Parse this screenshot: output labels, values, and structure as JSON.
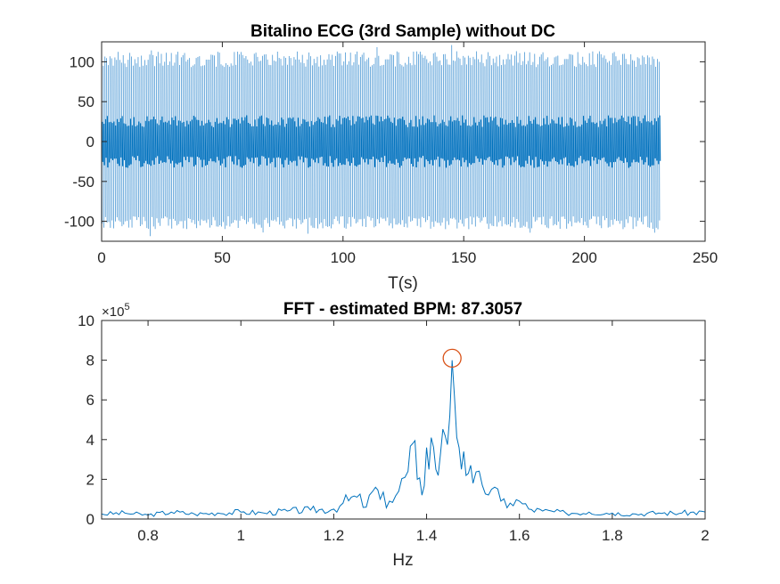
{
  "chart_data": [
    {
      "type": "line",
      "title": "Bitalino ECG (3rd Sample) without DC",
      "xlabel": "T(s)",
      "ylabel": "",
      "xlim": [
        0,
        250
      ],
      "ylim": [
        -125,
        125
      ],
      "xticks": [
        "0",
        "50",
        "100",
        "150",
        "200",
        "250"
      ],
      "yticks": [
        "-100",
        "-50",
        "0",
        "50",
        "100"
      ],
      "grid": false,
      "series": [
        {
          "color": "#0072BD",
          "signal": {
            "t_start": 0,
            "t_end": 231.5,
            "beat_rate_hz": 1.455,
            "r_peak_amplitude": 110,
            "s_trough_amplitude": -110,
            "baseline_band": [
              -30,
              30
            ],
            "max_observed": 125,
            "min_observed": -122
          }
        }
      ]
    },
    {
      "type": "line",
      "title": "FFT - estimated BPM: 87.3057",
      "xlabel": "Hz",
      "ylabel": "",
      "xlim": [
        0.7,
        2.0
      ],
      "ylim": [
        0,
        10
      ],
      "y_exponent": "×10",
      "y_exponent_power": "5",
      "xticks": [
        "0.8",
        "1",
        "1.2",
        "1.4",
        "1.6",
        "1.8",
        "2"
      ],
      "yticks": [
        "0",
        "2",
        "4",
        "6",
        "8",
        "10"
      ],
      "grid": false,
      "series": [
        {
          "color": "#0072BD",
          "points": [
            [
              0.7,
              0.25
            ],
            [
              0.75,
              0.3
            ],
            [
              0.8,
              0.2
            ],
            [
              0.85,
              0.35
            ],
            [
              0.9,
              0.25
            ],
            [
              0.95,
              0.3
            ],
            [
              1.0,
              0.35
            ],
            [
              1.05,
              0.3
            ],
            [
              1.1,
              0.4
            ],
            [
              1.15,
              0.45
            ],
            [
              1.2,
              0.5
            ],
            [
              1.22,
              0.8
            ],
            [
              1.25,
              1.1
            ],
            [
              1.27,
              0.6
            ],
            [
              1.29,
              1.6
            ],
            [
              1.3,
              1.0
            ],
            [
              1.32,
              0.9
            ],
            [
              1.34,
              1.4
            ],
            [
              1.36,
              2.4
            ],
            [
              1.37,
              3.8
            ],
            [
              1.38,
              2.0
            ],
            [
              1.39,
              1.2
            ],
            [
              1.4,
              3.6
            ],
            [
              1.41,
              4.1
            ],
            [
              1.42,
              2.5
            ],
            [
              1.43,
              3.3
            ],
            [
              1.44,
              4.2
            ],
            [
              1.45,
              5.2
            ],
            [
              1.455,
              8.0
            ],
            [
              1.46,
              6.2
            ],
            [
              1.47,
              3.6
            ],
            [
              1.48,
              3.4
            ],
            [
              1.49,
              2.3
            ],
            [
              1.5,
              1.8
            ],
            [
              1.52,
              1.7
            ],
            [
              1.54,
              1.5
            ],
            [
              1.56,
              0.9
            ],
            [
              1.58,
              0.8
            ],
            [
              1.6,
              0.9
            ],
            [
              1.62,
              0.5
            ],
            [
              1.65,
              0.4
            ],
            [
              1.7,
              0.3
            ],
            [
              1.75,
              0.35
            ],
            [
              1.8,
              0.3
            ],
            [
              1.85,
              0.25
            ],
            [
              1.9,
              0.3
            ],
            [
              1.95,
              0.3
            ],
            [
              2.0,
              0.35
            ]
          ]
        }
      ],
      "marker": {
        "x": 1.455,
        "y": 8.1,
        "color": "#D95319",
        "shape": "circle"
      }
    }
  ]
}
